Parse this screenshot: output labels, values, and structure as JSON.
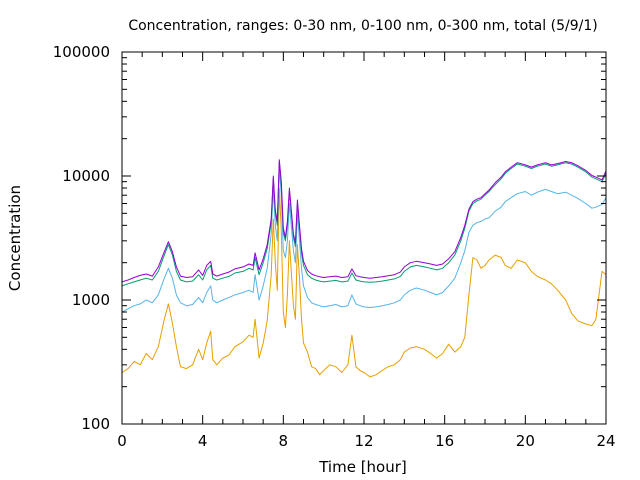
{
  "chart_data": {
    "type": "line",
    "title": "Concentration, ranges: 0-30 nm, 0-100 nm, 0-300 nm, total (5/9/1)",
    "xlabel": "Time [hour]",
    "ylabel": "Concentration",
    "xlim": [
      0,
      24
    ],
    "ylim": [
      100,
      100000
    ],
    "yscale": "log",
    "grid": false,
    "x_ticks": [
      0,
      4,
      8,
      12,
      16,
      20,
      24
    ],
    "x_tick_labels": [
      "0",
      "4",
      "8",
      "12",
      "16",
      "20",
      "24"
    ],
    "y_ticks": [
      100,
      1000,
      10000,
      100000
    ],
    "y_tick_labels": [
      "100",
      "1000",
      "10000",
      "100000"
    ],
    "series": [
      {
        "color": "#e69f00",
        "x": [
          0,
          0.3,
          0.6,
          0.9,
          1.2,
          1.5,
          1.8,
          2.1,
          2.3,
          2.5,
          2.7,
          2.9,
          3.2,
          3.5,
          3.8,
          4.0,
          4.2,
          4.4,
          4.5,
          4.7,
          5.0,
          5.3,
          5.6,
          6.0,
          6.3,
          6.5,
          6.6,
          6.8,
          7.0,
          7.2,
          7.4,
          7.5,
          7.6,
          7.7,
          7.8,
          7.9,
          8.0,
          8.1,
          8.2,
          8.3,
          8.5,
          8.6,
          8.7,
          8.8,
          8.9,
          9.0,
          9.2,
          9.4,
          9.6,
          9.8,
          10.0,
          10.3,
          10.6,
          10.9,
          11.2,
          11.4,
          11.6,
          11.8,
          12.0,
          12.3,
          12.6,
          12.9,
          13.2,
          13.5,
          13.8,
          14.0,
          14.3,
          14.6,
          15.0,
          15.3,
          15.6,
          15.9,
          16.2,
          16.5,
          16.8,
          17.0,
          17.2,
          17.4,
          17.6,
          17.8,
          18.0,
          18.2,
          18.5,
          18.8,
          19.0,
          19.3,
          19.6,
          20.0,
          20.3,
          20.6,
          21.0,
          21.3,
          21.6,
          22.0,
          22.3,
          22.6,
          23.0,
          23.3,
          23.5,
          23.8,
          24.0
        ],
        "y": [
          260,
          280,
          320,
          300,
          370,
          330,
          420,
          700,
          930,
          650,
          420,
          290,
          280,
          300,
          400,
          330,
          450,
          560,
          330,
          300,
          340,
          360,
          420,
          460,
          520,
          500,
          700,
          340,
          450,
          680,
          1600,
          4500,
          2000,
          1200,
          8000,
          3600,
          800,
          600,
          1100,
          3000,
          900,
          700,
          2800,
          1500,
          700,
          450,
          380,
          290,
          280,
          250,
          270,
          300,
          290,
          260,
          300,
          520,
          290,
          270,
          260,
          240,
          250,
          270,
          290,
          300,
          330,
          380,
          410,
          420,
          400,
          370,
          340,
          370,
          440,
          380,
          420,
          500,
          1100,
          2200,
          2100,
          1800,
          1900,
          2100,
          2300,
          2200,
          1900,
          1800,
          2100,
          2000,
          1700,
          1550,
          1450,
          1350,
          1200,
          1000,
          780,
          680,
          640,
          620,
          700,
          1700,
          1600
        ]
      },
      {
        "color": "#56b4e9",
        "x": [
          0,
          0.3,
          0.6,
          0.9,
          1.2,
          1.5,
          1.8,
          2.1,
          2.3,
          2.5,
          2.7,
          2.9,
          3.2,
          3.5,
          3.8,
          4.0,
          4.2,
          4.4,
          4.5,
          4.7,
          5.0,
          5.3,
          5.6,
          6.0,
          6.3,
          6.5,
          6.6,
          6.8,
          7.0,
          7.2,
          7.4,
          7.5,
          7.6,
          7.7,
          7.8,
          7.9,
          8.0,
          8.1,
          8.2,
          8.3,
          8.5,
          8.6,
          8.7,
          8.8,
          8.9,
          9.0,
          9.2,
          9.4,
          9.6,
          9.8,
          10.0,
          10.3,
          10.6,
          10.9,
          11.2,
          11.4,
          11.6,
          11.8,
          12.0,
          12.3,
          12.6,
          12.9,
          13.2,
          13.5,
          13.8,
          14.0,
          14.3,
          14.6,
          15.0,
          15.3,
          15.6,
          15.9,
          16.2,
          16.5,
          16.8,
          17.0,
          17.2,
          17.4,
          17.6,
          17.8,
          18.0,
          18.2,
          18.5,
          18.8,
          19.0,
          19.3,
          19.6,
          20.0,
          20.3,
          20.6,
          21.0,
          21.3,
          21.6,
          22.0,
          22.3,
          22.6,
          23.0,
          23.3,
          23.5,
          23.8,
          24.0
        ],
        "y": [
          800,
          850,
          900,
          930,
          1000,
          950,
          1100,
          1500,
          1800,
          1500,
          1100,
          950,
          900,
          920,
          1050,
          950,
          1150,
          1300,
          1000,
          950,
          1000,
          1050,
          1100,
          1150,
          1200,
          1150,
          1600,
          1000,
          1300,
          1800,
          3400,
          8000,
          4000,
          3000,
          12000,
          7000,
          2500,
          2200,
          3000,
          6000,
          2500,
          2000,
          5000,
          3000,
          1800,
          1300,
          1050,
          950,
          920,
          900,
          880,
          900,
          920,
          880,
          900,
          1100,
          930,
          900,
          880,
          870,
          880,
          900,
          920,
          950,
          1000,
          1100,
          1200,
          1250,
          1200,
          1150,
          1100,
          1150,
          1300,
          1500,
          2000,
          2500,
          3500,
          4000,
          4200,
          4300,
          4500,
          4600,
          5200,
          5600,
          6200,
          6700,
          7200,
          7500,
          7000,
          7400,
          7800,
          7500,
          7200,
          7400,
          7000,
          6600,
          6000,
          5500,
          5600,
          5900,
          6700
        ]
      },
      {
        "color": "#009e73",
        "x": [
          0,
          0.3,
          0.6,
          0.9,
          1.2,
          1.5,
          1.8,
          2.1,
          2.3,
          2.5,
          2.7,
          2.9,
          3.2,
          3.5,
          3.8,
          4.0,
          4.2,
          4.4,
          4.5,
          4.7,
          5.0,
          5.3,
          5.6,
          6.0,
          6.3,
          6.5,
          6.6,
          6.8,
          7.0,
          7.2,
          7.4,
          7.5,
          7.6,
          7.7,
          7.8,
          7.9,
          8.0,
          8.1,
          8.2,
          8.3,
          8.5,
          8.6,
          8.7,
          8.8,
          8.9,
          9.0,
          9.2,
          9.4,
          9.6,
          9.8,
          10.0,
          10.3,
          10.6,
          10.9,
          11.2,
          11.4,
          11.6,
          11.8,
          12.0,
          12.3,
          12.6,
          12.9,
          13.2,
          13.5,
          13.8,
          14.0,
          14.3,
          14.6,
          15.0,
          15.3,
          15.6,
          15.9,
          16.2,
          16.5,
          16.8,
          17.0,
          17.2,
          17.4,
          17.6,
          17.8,
          18.0,
          18.2,
          18.5,
          18.8,
          19.0,
          19.3,
          19.6,
          20.0,
          20.3,
          20.6,
          21.0,
          21.3,
          21.6,
          22.0,
          22.3,
          22.6,
          23.0,
          23.3,
          23.5,
          23.8,
          24.0
        ],
        "y": [
          1300,
          1350,
          1400,
          1450,
          1500,
          1450,
          1700,
          2300,
          2800,
          2300,
          1700,
          1450,
          1400,
          1420,
          1600,
          1450,
          1750,
          1900,
          1500,
          1450,
          1500,
          1550,
          1650,
          1700,
          1800,
          1750,
          2200,
          1600,
          2000,
          2600,
          4200,
          9500,
          5000,
          4000,
          13000,
          8500,
          3500,
          3000,
          4000,
          7500,
          3200,
          2700,
          6000,
          3800,
          2400,
          1900,
          1600,
          1500,
          1450,
          1420,
          1400,
          1420,
          1440,
          1400,
          1420,
          1650,
          1450,
          1420,
          1400,
          1390,
          1400,
          1420,
          1450,
          1480,
          1550,
          1700,
          1850,
          1900,
          1850,
          1800,
          1750,
          1800,
          2000,
          2300,
          3000,
          3800,
          5200,
          6000,
          6300,
          6500,
          7000,
          7500,
          8500,
          9500,
          10500,
          11500,
          12500,
          12000,
          11500,
          12000,
          12500,
          12000,
          12300,
          12800,
          12500,
          11800,
          10800,
          9800,
          9500,
          9000,
          10500
        ]
      },
      {
        "color": "#9400d3",
        "x": [
          0,
          0.3,
          0.6,
          0.9,
          1.2,
          1.5,
          1.8,
          2.1,
          2.3,
          2.5,
          2.7,
          2.9,
          3.2,
          3.5,
          3.8,
          4.0,
          4.2,
          4.4,
          4.5,
          4.7,
          5.0,
          5.3,
          5.6,
          6.0,
          6.3,
          6.5,
          6.6,
          6.8,
          7.0,
          7.2,
          7.4,
          7.5,
          7.6,
          7.7,
          7.8,
          7.9,
          8.0,
          8.1,
          8.2,
          8.3,
          8.5,
          8.6,
          8.7,
          8.8,
          8.9,
          9.0,
          9.2,
          9.4,
          9.6,
          9.8,
          10.0,
          10.3,
          10.6,
          10.9,
          11.2,
          11.4,
          11.6,
          11.8,
          12.0,
          12.3,
          12.6,
          12.9,
          13.2,
          13.5,
          13.8,
          14.0,
          14.3,
          14.6,
          15.0,
          15.3,
          15.6,
          15.9,
          16.2,
          16.5,
          16.8,
          17.0,
          17.2,
          17.4,
          17.6,
          17.8,
          18.0,
          18.2,
          18.5,
          18.8,
          19.0,
          19.3,
          19.6,
          20.0,
          20.3,
          20.6,
          21.0,
          21.3,
          21.6,
          22.0,
          22.3,
          22.6,
          23.0,
          23.3,
          23.5,
          23.8,
          24.0
        ],
        "y": [
          1400,
          1450,
          1520,
          1580,
          1620,
          1560,
          1850,
          2450,
          2950,
          2450,
          1850,
          1560,
          1520,
          1540,
          1750,
          1580,
          1900,
          2050,
          1620,
          1560,
          1620,
          1680,
          1780,
          1850,
          1950,
          1900,
          2400,
          1750,
          2150,
          2800,
          4500,
          10000,
          5300,
          4300,
          13500,
          9000,
          3800,
          3200,
          4300,
          8000,
          3400,
          2900,
          6400,
          4000,
          2600,
          2050,
          1730,
          1620,
          1570,
          1540,
          1520,
          1540,
          1560,
          1520,
          1540,
          1780,
          1570,
          1540,
          1520,
          1500,
          1520,
          1540,
          1570,
          1600,
          1680,
          1850,
          2000,
          2050,
          2000,
          1950,
          1900,
          1950,
          2150,
          2450,
          3200,
          4000,
          5400,
          6200,
          6500,
          6700,
          7200,
          7700,
          8800,
          9800,
          10800,
          11800,
          12800,
          12300,
          11800,
          12300,
          12800,
          12300,
          12600,
          13100,
          12800,
          12100,
          11100,
          10100,
          9800,
          9300,
          11000
        ]
      }
    ]
  }
}
